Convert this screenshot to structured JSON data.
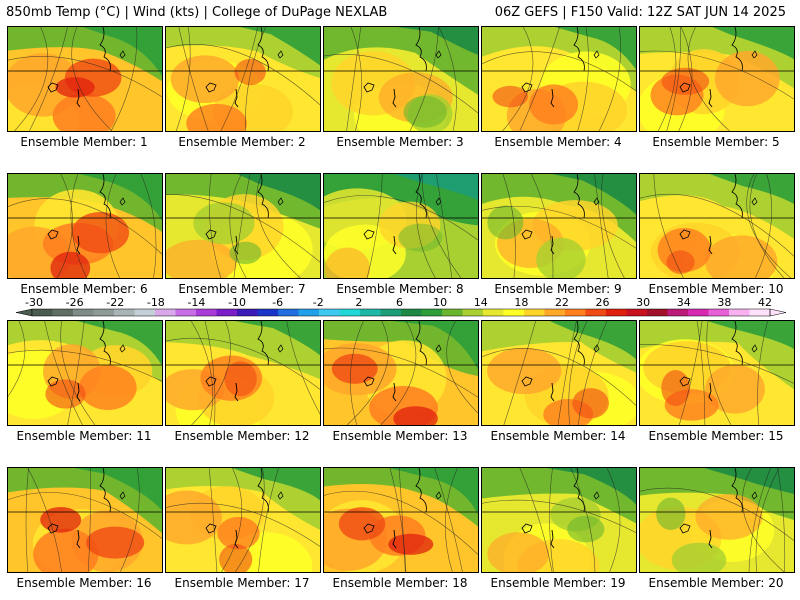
{
  "header": {
    "left": "850mb Temp (°C) | Wind (kts) | College of DuPage NEXLAB",
    "right": "06Z GEFS | F150 Valid: 12Z SAT JUN 14 2025"
  },
  "panels": [
    {
      "label": "Ensemble Member: 1",
      "warmth": "hot"
    },
    {
      "label": "Ensemble Member: 2",
      "warmth": "warm"
    },
    {
      "label": "Ensemble Member: 3",
      "warmth": "mild"
    },
    {
      "label": "Ensemble Member: 4",
      "warmth": "warm"
    },
    {
      "label": "Ensemble Member: 5",
      "warmth": "warm"
    },
    {
      "label": "Ensemble Member: 6",
      "warmth": "hot"
    },
    {
      "label": "Ensemble Member: 7",
      "warmth": "mild"
    },
    {
      "label": "Ensemble Member: 8",
      "warmth": "cool"
    },
    {
      "label": "Ensemble Member: 9",
      "warmth": "mild"
    },
    {
      "label": "Ensemble Member: 10",
      "warmth": "warm"
    },
    {
      "label": "Ensemble Member: 11",
      "warmth": "warm"
    },
    {
      "label": "Ensemble Member: 12",
      "warmth": "warm"
    },
    {
      "label": "Ensemble Member: 13",
      "warmth": "hot"
    },
    {
      "label": "Ensemble Member: 14",
      "warmth": "warm"
    },
    {
      "label": "Ensemble Member: 15",
      "warmth": "warm"
    },
    {
      "label": "Ensemble Member: 16",
      "warmth": "hot"
    },
    {
      "label": "Ensemble Member: 17",
      "warmth": "warm"
    },
    {
      "label": "Ensemble Member: 18",
      "warmth": "hot"
    },
    {
      "label": "Ensemble Member: 19",
      "warmth": "mild"
    },
    {
      "label": "Ensemble Member: 20",
      "warmth": "mild"
    }
  ],
  "colorbar": {
    "ticks": [
      "-30",
      "-26",
      "-22",
      "-18",
      "-14",
      "-10",
      "-6",
      "-2",
      "2",
      "6",
      "10",
      "14",
      "18",
      "22",
      "26",
      "30",
      "34",
      "38",
      "42"
    ],
    "colors": [
      "#4a5b50",
      "#5f6f66",
      "#7f8b88",
      "#8e9998",
      "#a8b4b6",
      "#c3d0d8",
      "#d8a8e8",
      "#c76ee6",
      "#a83cd8",
      "#7a1fc8",
      "#3c1ab8",
      "#1a36c8",
      "#1e6ee0",
      "#20a0e8",
      "#3fc8f0",
      "#22d7d7",
      "#1fb8a8",
      "#1c9c78",
      "#1c8a44",
      "#2e9e3a",
      "#6ab52e",
      "#a8d030",
      "#e6e830",
      "#ffff28",
      "#ffd52a",
      "#ffa82a",
      "#ff7e1e",
      "#f04b14",
      "#e0200e",
      "#c8101e",
      "#a01028",
      "#bb1a78",
      "#d82ab0",
      "#e860d8",
      "#f8b0f0",
      "#fde0fa"
    ]
  }
}
